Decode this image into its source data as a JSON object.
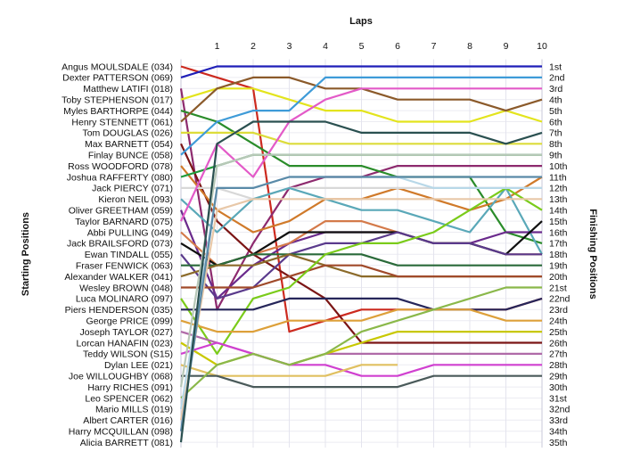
{
  "chart_data": {
    "type": "line",
    "title": "",
    "xlabel": "Laps",
    "ylabel_left": "Starting Positions",
    "ylabel_right": "Finishing Positions",
    "laps": [
      1,
      2,
      3,
      4,
      5,
      6,
      7,
      8,
      9,
      10
    ],
    "finishing_labels": [
      "1st",
      "2nd",
      "3rd",
      "4th",
      "5th",
      "6th",
      "7th",
      "8th",
      "9th",
      "10th",
      "11th",
      "12th",
      "13th",
      "14th",
      "15th",
      "16th",
      "17th",
      "18th",
      "19th",
      "20th",
      "21st",
      "22nd",
      "23rd",
      "24th",
      "25th",
      "26th",
      "27th",
      "28th",
      "29th",
      "30th",
      "31st",
      "32nd",
      "33rd",
      "34th",
      "35th"
    ],
    "grid": true,
    "series": [
      {
        "name": "Angus MOULSDALE (034)",
        "color": "#cc2a1f",
        "positions": [
          2,
          3,
          25,
          24,
          23,
          23,
          23,
          23,
          23,
          22
        ]
      },
      {
        "name": "Dexter PATTERSON (069)",
        "color": "#1f1fb8",
        "positions": [
          1,
          1,
          1,
          1,
          1,
          1,
          1,
          1,
          1,
          1
        ]
      },
      {
        "name": "Matthew LATIFI (018)",
        "color": "#8d2a6e",
        "positions": [
          23,
          17,
          12,
          11,
          11,
          10,
          10,
          10,
          10,
          10
        ]
      },
      {
        "name": "Toby STEPHENSON (017)",
        "color": "#e3e41d",
        "positions": [
          3,
          3,
          4,
          5,
          5,
          6,
          6,
          6,
          5,
          6
        ]
      },
      {
        "name": "Myles BARTHORPE (044)",
        "color": "#2a8c2a",
        "positions": [
          6,
          8,
          10,
          10,
          10,
          11,
          11,
          11,
          16,
          17
        ]
      },
      {
        "name": "Henry STENNETT (061)",
        "color": "#8b5a2a",
        "positions": [
          3,
          2,
          2,
          3,
          3,
          4,
          4,
          4,
          5,
          4
        ]
      },
      {
        "name": "Tom DOUGLAS (026)",
        "color": "#dcdc3a",
        "positions": [
          7,
          7,
          8,
          8,
          8,
          8,
          8,
          8,
          8,
          8
        ]
      },
      {
        "name": "Max BARNETT (054)",
        "color": "#7b1515",
        "positions": [
          15,
          18,
          20,
          22,
          26,
          26,
          26,
          26,
          26,
          26
        ]
      },
      {
        "name": "Finlay BUNCE (058)",
        "color": "#3e9bd8",
        "positions": [
          6,
          5,
          5,
          2,
          2,
          2,
          2,
          2,
          2,
          2
        ]
      },
      {
        "name": "Ross WOODFORD (078)",
        "color": "#d07a2a",
        "positions": [
          14,
          16,
          15,
          13,
          13,
          12,
          13,
          14,
          13,
          11
        ]
      },
      {
        "name": "Joshua RAFFERTY (080)",
        "color": "#1f9a3a",
        "positions": [
          10,
          9,
          9,
          9,
          9,
          9,
          9,
          9,
          9,
          9
        ]
      },
      {
        "name": "Jack PIERCY (071)",
        "color": "#d8d8d8",
        "positions": [
          12,
          13,
          12,
          12,
          12,
          12,
          12,
          12,
          12,
          12
        ]
      },
      {
        "name": "Kieron NEIL (093)",
        "color": "#5aa8b8",
        "positions": [
          16,
          13,
          12,
          13,
          14,
          14,
          15,
          16,
          12,
          18
        ]
      },
      {
        "name": "Oliver GREETHAM (059)",
        "color": "#6a2a8c",
        "positions": [
          22,
          19,
          17,
          16,
          16,
          16,
          17,
          17,
          16,
          16
        ]
      },
      {
        "name": "Taylor BARNARD (075)",
        "color": "#e35ac8",
        "positions": [
          8,
          11,
          6,
          4,
          3,
          3,
          3,
          3,
          3,
          3
        ]
      },
      {
        "name": "Abbi PULLING (049)",
        "color": "#d47a4a",
        "positions": [
          19,
          18,
          17,
          15,
          15,
          16,
          17,
          17,
          18,
          18
        ]
      },
      {
        "name": "Jack BRAILSFORD (073)",
        "color": "#101010",
        "positions": [
          19,
          18,
          16,
          16,
          16,
          16,
          17,
          17,
          18,
          15
        ]
      },
      {
        "name": "Ewan TINDALL (055)",
        "color": "#5a3a8c",
        "positions": [
          22,
          21,
          18,
          17,
          17,
          16,
          17,
          17,
          18,
          18
        ]
      },
      {
        "name": "Fraser FENWICK (063)",
        "color": "#2a6a3a",
        "positions": [
          19,
          18,
          18,
          18,
          18,
          19,
          19,
          19,
          19,
          19
        ]
      },
      {
        "name": "Alexander WALKER (041)",
        "color": "#8b6a2a",
        "positions": [
          19,
          19,
          18,
          19,
          20,
          20,
          20,
          20,
          20,
          20
        ]
      },
      {
        "name": "Wesley BROWN (048)",
        "color": "#a04a2a",
        "positions": [
          21,
          21,
          20,
          19,
          19,
          20,
          20,
          20,
          20,
          20
        ]
      },
      {
        "name": "Luca MOLINARO (097)",
        "color": "#7acb1a",
        "positions": [
          27,
          22,
          21,
          18,
          17,
          17,
          16,
          14,
          12,
          14
        ]
      },
      {
        "name": "Piers HENDERSON (035)",
        "color": "#26265a",
        "positions": [
          23,
          23,
          22,
          22,
          22,
          22,
          23,
          23,
          23,
          22
        ]
      },
      {
        "name": "George PRICE (099)",
        "color": "#dda03a",
        "positions": [
          25,
          25,
          24,
          24,
          24,
          23,
          23,
          23,
          24,
          24
        ]
      },
      {
        "name": "Joseph TAYLOR (027)",
        "color": "#b06aa8",
        "positions": [
          26,
          27,
          28,
          27,
          27,
          27,
          27,
          27,
          27,
          27
        ]
      },
      {
        "name": "Lorcan HANAFIN (023)",
        "color": "#c8c800",
        "positions": [
          28,
          27,
          28,
          27,
          26,
          25,
          25,
          25,
          25,
          25
        ]
      },
      {
        "name": "Teddy WILSON (S15)",
        "color": "#d040d0",
        "positions": [
          26,
          27,
          28,
          28,
          29,
          29,
          28,
          28,
          28,
          28
        ]
      },
      {
        "name": "Dylan LEE (021)",
        "color": "#e0c060",
        "positions": [
          29,
          29,
          29,
          29,
          28,
          28,
          null,
          null,
          null,
          null
        ]
      },
      {
        "name": "Joe WILLOUGHBY (068)",
        "color": "#4a5a5a",
        "positions": [
          29,
          30,
          30,
          30,
          30,
          30,
          29,
          29,
          29,
          29
        ]
      },
      {
        "name": "Harry RICHES (091)",
        "color": "#b8c8b8",
        "positions": [
          10,
          9,
          9,
          9,
          9,
          9,
          9,
          9,
          9,
          9
        ]
      },
      {
        "name": "Leo SPENCER (062)",
        "color": "#8ab84a",
        "positions": [
          28,
          27,
          28,
          27,
          25,
          24,
          23,
          22,
          21,
          21
        ]
      },
      {
        "name": "Mario MILLS (019)",
        "color": "#b8d8e8",
        "positions": [
          12,
          12,
          11,
          11,
          11,
          11,
          12,
          12,
          12,
          12
        ]
      },
      {
        "name": "Albert CARTER (016)",
        "color": "#e8c8a8",
        "positions": [
          14,
          13,
          13,
          13,
          13,
          13,
          13,
          13,
          13,
          13
        ]
      },
      {
        "name": "Harry MCQUILLAN (098)",
        "color": "#5a8aa8",
        "positions": [
          12,
          12,
          11,
          11,
          11,
          11,
          11,
          11,
          11,
          11
        ]
      },
      {
        "name": "Alicia BARRETT (081)",
        "color": "#2a5050",
        "positions": [
          8,
          6,
          6,
          6,
          7,
          7,
          7,
          7,
          8,
          7
        ]
      }
    ]
  }
}
